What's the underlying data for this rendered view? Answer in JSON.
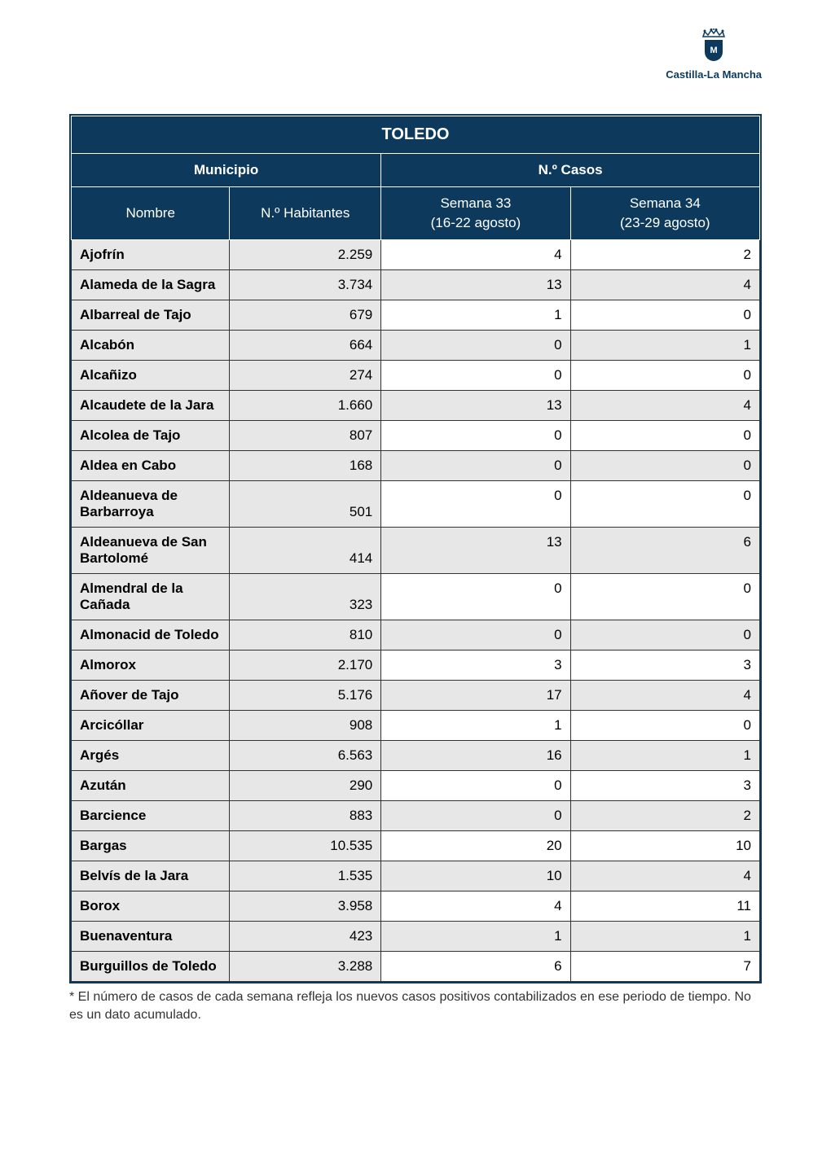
{
  "logo": {
    "text": "Castilla-La Mancha",
    "shield_letter": "M",
    "primary_color": "#0d3a5c"
  },
  "table": {
    "title": "TOLEDO",
    "header_municipio": "Municipio",
    "header_casos": "N.º Casos",
    "subheader_nombre": "Nombre",
    "subheader_habitantes": "N.º Habitantes",
    "subheader_semana33_line1": "Semana 33",
    "subheader_semana33_line2": "(16-22 agosto)",
    "subheader_semana34_line1": "Semana 34",
    "subheader_semana34_line2": "(23-29 agosto)",
    "columns": [
      "Nombre",
      "N.º Habitantes",
      "Semana 33",
      "Semana 34"
    ],
    "column_widths_pct": [
      23,
      22,
      27.5,
      27.5
    ],
    "header_bg_color": "#0d3a5c",
    "header_text_color": "#ffffff",
    "municipio_bg_color": "#e7e7e7",
    "alt_row_bg_color": "#e7e7e7",
    "row_bg_color": "#ffffff",
    "border_color": "#333333",
    "title_fontsize": 20,
    "header_fontsize": 17,
    "cell_fontsize": 17,
    "rows": [
      {
        "nombre": "Ajofrín",
        "habitantes": "2.259",
        "s33": "4",
        "s34": "2"
      },
      {
        "nombre": "Alameda de la Sagra",
        "habitantes": "3.734",
        "s33": "13",
        "s34": "4"
      },
      {
        "nombre": "Albarreal de Tajo",
        "habitantes": "679",
        "s33": "1",
        "s34": "0"
      },
      {
        "nombre": "Alcabón",
        "habitantes": "664",
        "s33": "0",
        "s34": "1"
      },
      {
        "nombre": "Alcañizo",
        "habitantes": "274",
        "s33": "0",
        "s34": "0"
      },
      {
        "nombre": "Alcaudete de la Jara",
        "habitantes": "1.660",
        "s33": "13",
        "s34": "4"
      },
      {
        "nombre": "Alcolea de Tajo",
        "habitantes": "807",
        "s33": "0",
        "s34": "0"
      },
      {
        "nombre": "Aldea en Cabo",
        "habitantes": "168",
        "s33": "0",
        "s34": "0"
      },
      {
        "nombre": "Aldeanueva de Barbarroya",
        "habitantes": "501",
        "s33": "0",
        "s34": "0"
      },
      {
        "nombre": "Aldeanueva de San Bartolomé",
        "habitantes": "414",
        "s33": "13",
        "s34": "6"
      },
      {
        "nombre": "Almendral de la Cañada",
        "habitantes": "323",
        "s33": "0",
        "s34": "0"
      },
      {
        "nombre": "Almonacid de Toledo",
        "habitantes": "810",
        "s33": "0",
        "s34": "0"
      },
      {
        "nombre": "Almorox",
        "habitantes": "2.170",
        "s33": "3",
        "s34": "3"
      },
      {
        "nombre": "Añover de Tajo",
        "habitantes": "5.176",
        "s33": "17",
        "s34": "4"
      },
      {
        "nombre": "Arcicóllar",
        "habitantes": "908",
        "s33": "1",
        "s34": "0"
      },
      {
        "nombre": "Argés",
        "habitantes": "6.563",
        "s33": "16",
        "s34": "1"
      },
      {
        "nombre": "Azután",
        "habitantes": "290",
        "s33": "0",
        "s34": "3"
      },
      {
        "nombre": "Barcience",
        "habitantes": "883",
        "s33": "0",
        "s34": "2"
      },
      {
        "nombre": "Bargas",
        "habitantes": "10.535",
        "s33": "20",
        "s34": "10"
      },
      {
        "nombre": "Belvís de la Jara",
        "habitantes": "1.535",
        "s33": "10",
        "s34": "4"
      },
      {
        "nombre": "Borox",
        "habitantes": "3.958",
        "s33": "4",
        "s34": "11"
      },
      {
        "nombre": "Buenaventura",
        "habitantes": "423",
        "s33": "1",
        "s34": "1"
      },
      {
        "nombre": "Burguillos de Toledo",
        "habitantes": "3.288",
        "s33": "6",
        "s34": "7"
      }
    ]
  },
  "footnote": "* El número de casos de cada semana refleja los nuevos casos positivos contabilizados en ese periodo de tiempo. No es un dato acumulado."
}
